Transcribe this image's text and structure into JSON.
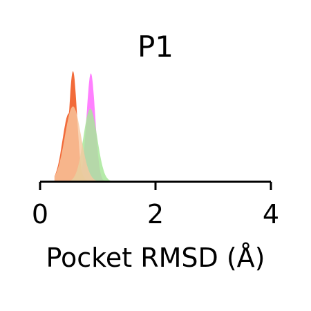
{
  "chart_data": {
    "type": "area",
    "title": "P1",
    "xlabel": "Pocket RMSD (Å)",
    "ylabel": "",
    "xlim": [
      0,
      4
    ],
    "ylim": [
      0,
      1.0
    ],
    "x_ticks": [
      "0",
      "2",
      "4"
    ],
    "grid": false,
    "legend": "none",
    "series": [
      {
        "color": "#ff80ff",
        "opacity": 1.0,
        "peak_x": 0.88,
        "peak_density": 0.95,
        "sigma": 0.075,
        "range": [
          0.62,
          1.3
        ]
      },
      {
        "color": "#f26b3a",
        "opacity": 1.0,
        "peak_x": 0.57,
        "peak_density": 0.97,
        "sigma": 0.07,
        "shoulder_x": 0.5,
        "shoulder_density": 0.6,
        "range": [
          0.25,
          1.1
        ]
      },
      {
        "color": "#a8e89a",
        "opacity": 0.85,
        "peak_x": 0.87,
        "peak_density": 0.64,
        "sigma": 0.12,
        "range": [
          0.35,
          1.35
        ]
      },
      {
        "color": "#f8c8a0",
        "opacity": 0.8,
        "peak_x": 0.57,
        "peak_density": 0.66,
        "sigma": 0.14,
        "range": [
          0.25,
          1.3
        ]
      }
    ]
  }
}
